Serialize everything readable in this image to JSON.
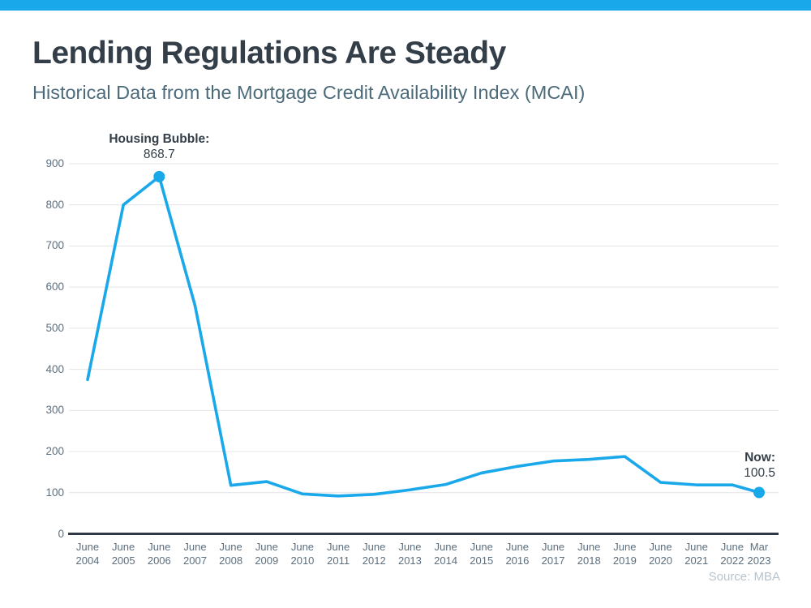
{
  "header": {
    "title": "Lending Regulations Are Steady",
    "subtitle": "Historical Data from the Mortgage Credit Availability Index (MCAI)"
  },
  "footer": {
    "source": "Source: MBA"
  },
  "colors": {
    "accent_blue": "#19A8EA",
    "title_text": "#333E48",
    "subtitle_text": "#4C6B7A",
    "axis_label_text": "#5C6F7E",
    "gridline": "#E4E4E6",
    "axis_line": "#2F3A44",
    "source_text": "#B7C3CD"
  },
  "chart_data": {
    "type": "line",
    "title": "",
    "xlabel": "",
    "ylabel": "",
    "categories": [
      "June 2004",
      "June 2005",
      "June 2006",
      "June 2007",
      "June 2008",
      "June 2009",
      "June 2010",
      "June 2011",
      "June 2012",
      "June 2013",
      "June 2014",
      "June 2015",
      "June 2016",
      "June 2017",
      "June 2018",
      "June 2019",
      "June 2020",
      "June 2021",
      "June 2022",
      "Mar 2023"
    ],
    "x_steps": [
      0,
      1,
      2,
      3,
      4,
      5,
      6,
      7,
      8,
      9,
      10,
      11,
      12,
      13,
      14,
      15,
      16,
      17,
      18,
      18.75
    ],
    "values": [
      375,
      800,
      868.7,
      555,
      118,
      127,
      97,
      92,
      96,
      107,
      120,
      148,
      164,
      177,
      181,
      188,
      125,
      119,
      119,
      100.5
    ],
    "ylim": [
      0,
      900
    ],
    "yticks": [
      0,
      100,
      200,
      300,
      400,
      500,
      600,
      700,
      800,
      900
    ],
    "grid": true,
    "legend": false,
    "line_color": "#19A8EA",
    "marker_color": "#19A8EA",
    "annotations": [
      {
        "label_text": "Housing Bubble:",
        "value_text": "868.7",
        "point_index": 2,
        "align": "center-above"
      },
      {
        "label_text": "Now:",
        "value_text": "100.5",
        "point_index": 19,
        "align": "right-above"
      }
    ]
  }
}
